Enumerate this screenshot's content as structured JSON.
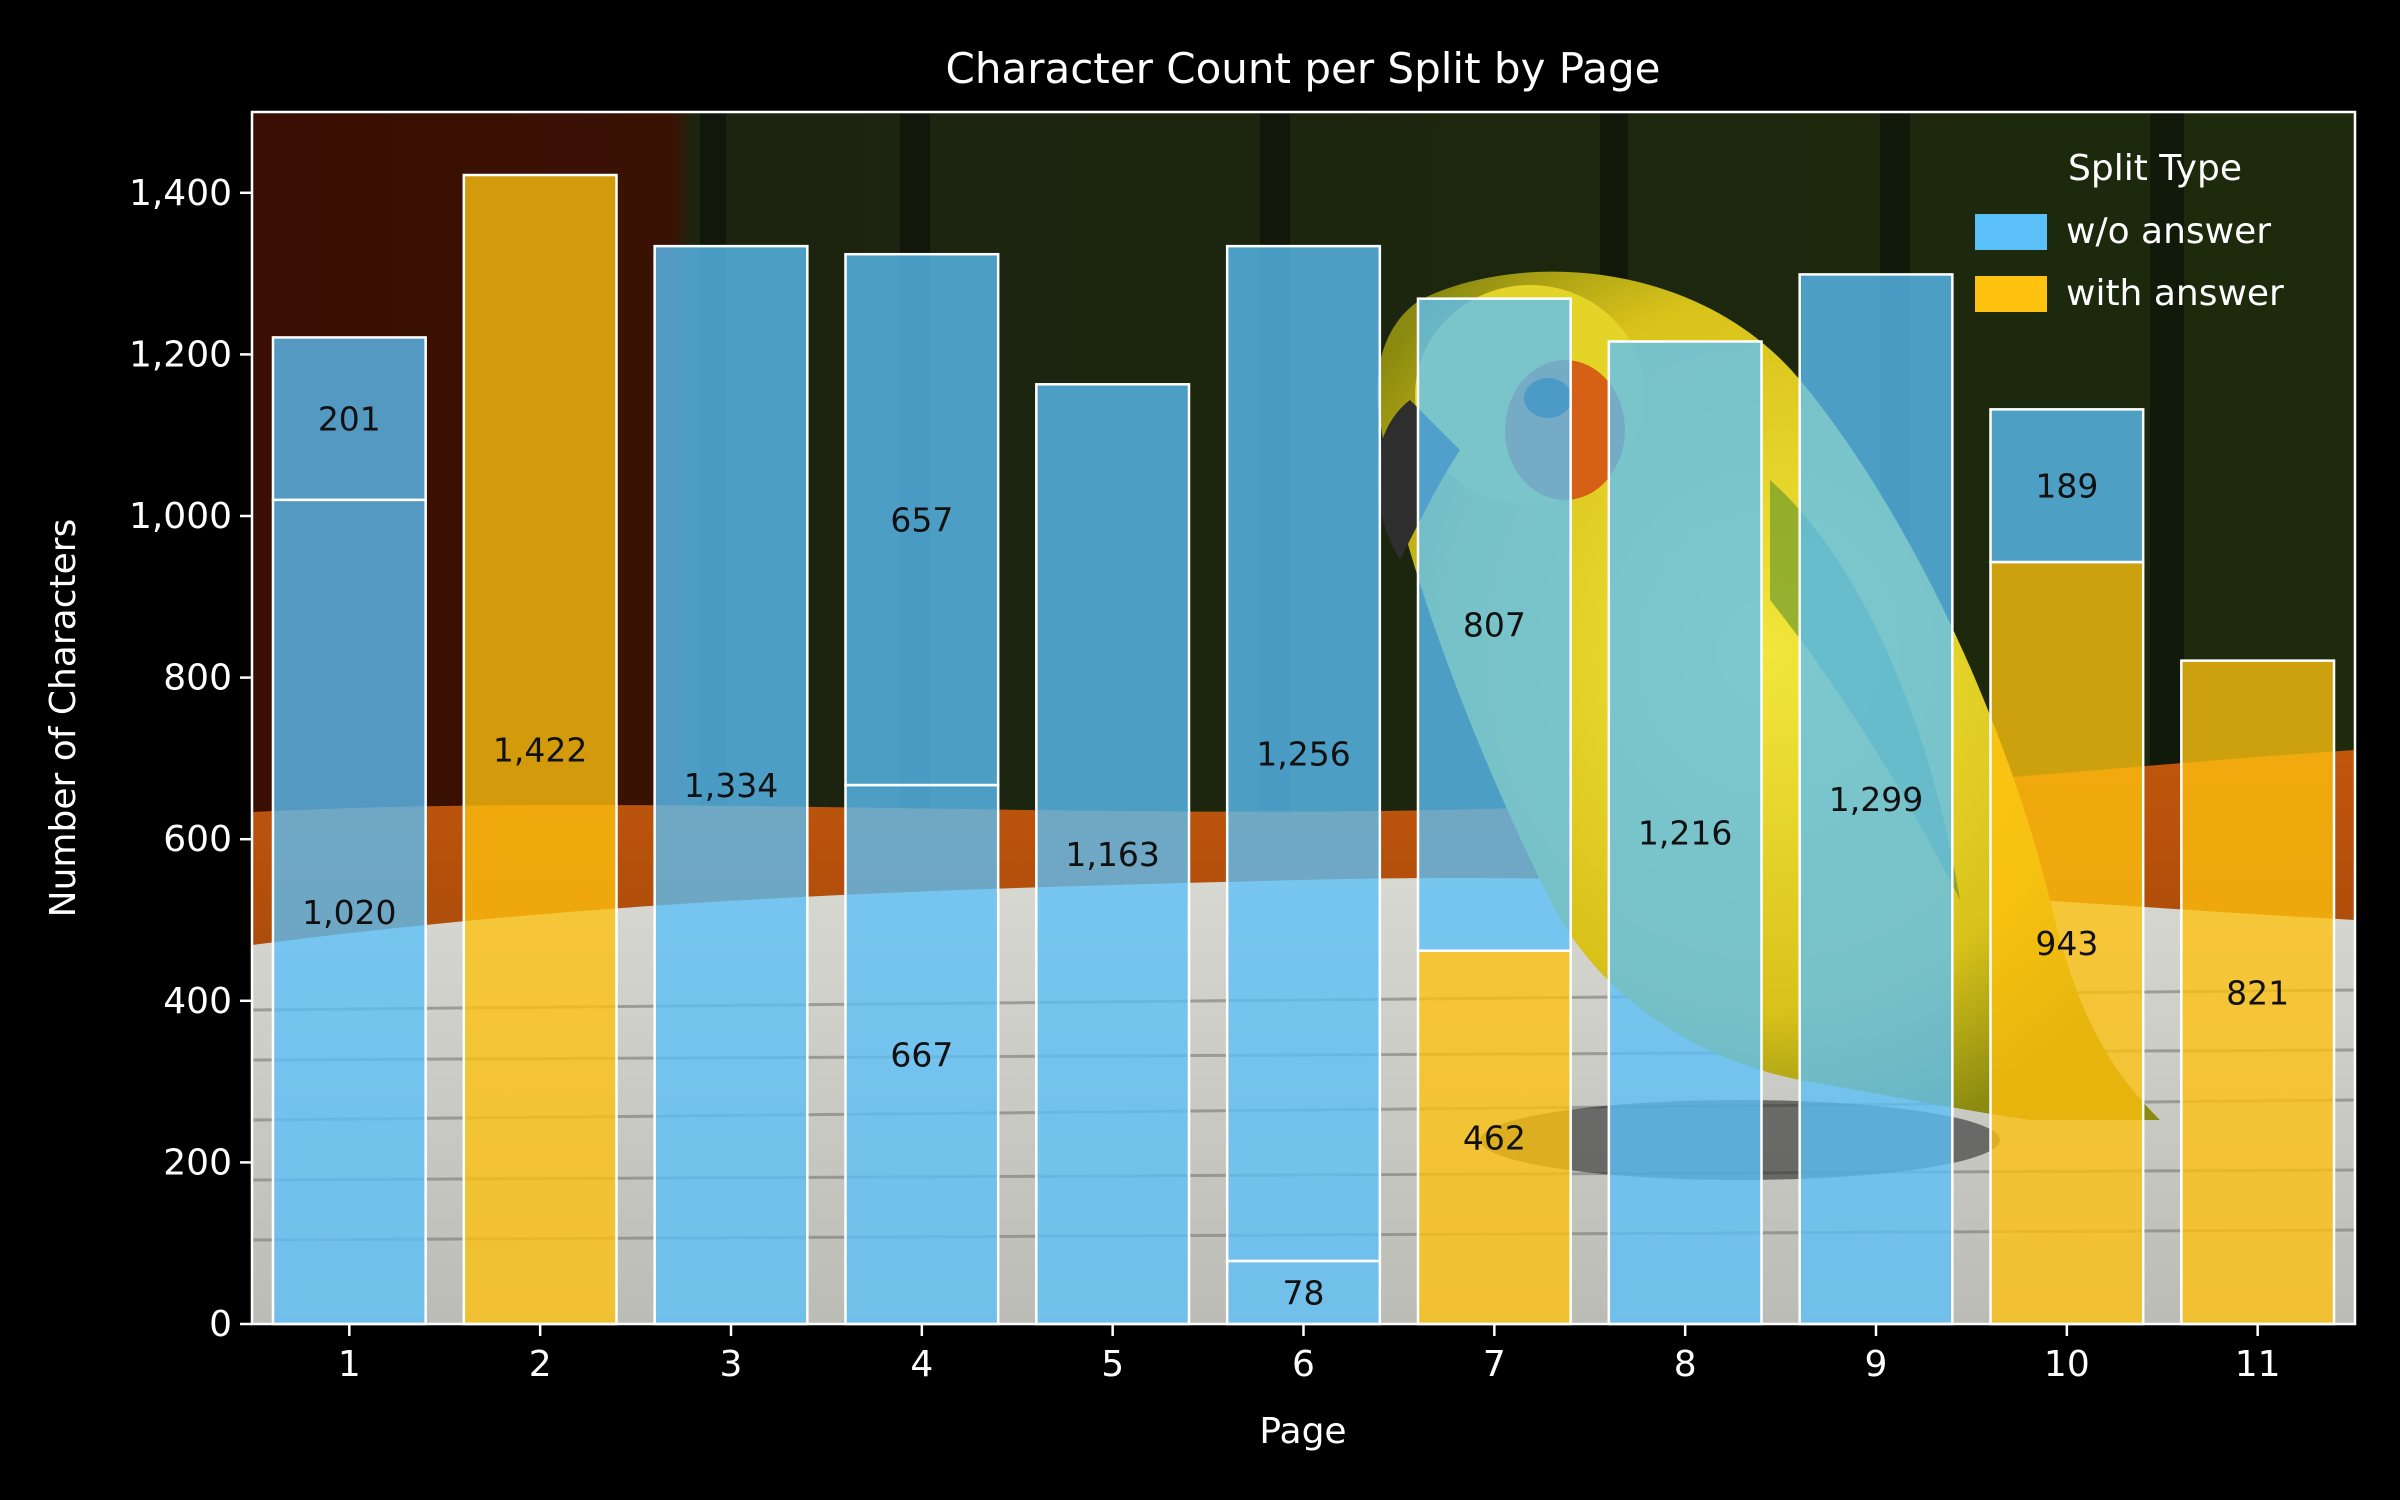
{
  "chart_data": {
    "type": "bar",
    "stacked": true,
    "title": "Character Count per Split by Page",
    "xlabel": "Page",
    "ylabel": "Number of Characters",
    "ylim": [
      0,
      1500
    ],
    "yticks": [
      0,
      200,
      400,
      600,
      800,
      1000,
      1200,
      1400
    ],
    "ytick_labels": [
      "0",
      "200",
      "400",
      "600",
      "800",
      "1,000",
      "1,200",
      "1,400"
    ],
    "grid": false,
    "legend": {
      "title": "Split Type",
      "position": "top-right"
    },
    "background": "photo of a yellow parrot sitting on papers",
    "series": [
      {
        "name": "w/o answer",
        "color": "#5bc0f8"
      },
      {
        "name": "with answer",
        "color": "#ffc20e"
      }
    ],
    "categories": [
      "1",
      "2",
      "3",
      "4",
      "5",
      "6",
      "7",
      "8",
      "9",
      "10",
      "11"
    ],
    "pages": [
      {
        "page": "1",
        "segments": [
          {
            "series": "w/o answer",
            "value": 1020,
            "label": "1,020"
          },
          {
            "series": "w/o answer",
            "value": 201,
            "label": "201"
          }
        ]
      },
      {
        "page": "2",
        "segments": [
          {
            "series": "with answer",
            "value": 1422,
            "label": "1,422"
          }
        ]
      },
      {
        "page": "3",
        "segments": [
          {
            "series": "w/o answer",
            "value": 1334,
            "label": "1,334"
          }
        ]
      },
      {
        "page": "4",
        "segments": [
          {
            "series": "w/o answer",
            "value": 667,
            "label": "667"
          },
          {
            "series": "w/o answer",
            "value": 657,
            "label": "657"
          }
        ]
      },
      {
        "page": "5",
        "segments": [
          {
            "series": "w/o answer",
            "value": 1163,
            "label": "1,163"
          }
        ]
      },
      {
        "page": "6",
        "segments": [
          {
            "series": "w/o answer",
            "value": 78,
            "label": "78"
          },
          {
            "series": "w/o answer",
            "value": 1256,
            "label": "1,256"
          }
        ]
      },
      {
        "page": "7",
        "segments": [
          {
            "series": "with answer",
            "value": 462,
            "label": "462"
          },
          {
            "series": "w/o answer",
            "value": 807,
            "label": "807"
          }
        ]
      },
      {
        "page": "8",
        "segments": [
          {
            "series": "w/o answer",
            "value": 1216,
            "label": "1,216"
          }
        ]
      },
      {
        "page": "9",
        "segments": [
          {
            "series": "w/o answer",
            "value": 1299,
            "label": "1,299"
          }
        ]
      },
      {
        "page": "10",
        "segments": [
          {
            "series": "with answer",
            "value": 943,
            "label": "943"
          },
          {
            "series": "w/o answer",
            "value": 189,
            "label": "189"
          }
        ]
      },
      {
        "page": "11",
        "segments": [
          {
            "series": "with answer",
            "value": 821,
            "label": "821"
          }
        ]
      }
    ]
  }
}
